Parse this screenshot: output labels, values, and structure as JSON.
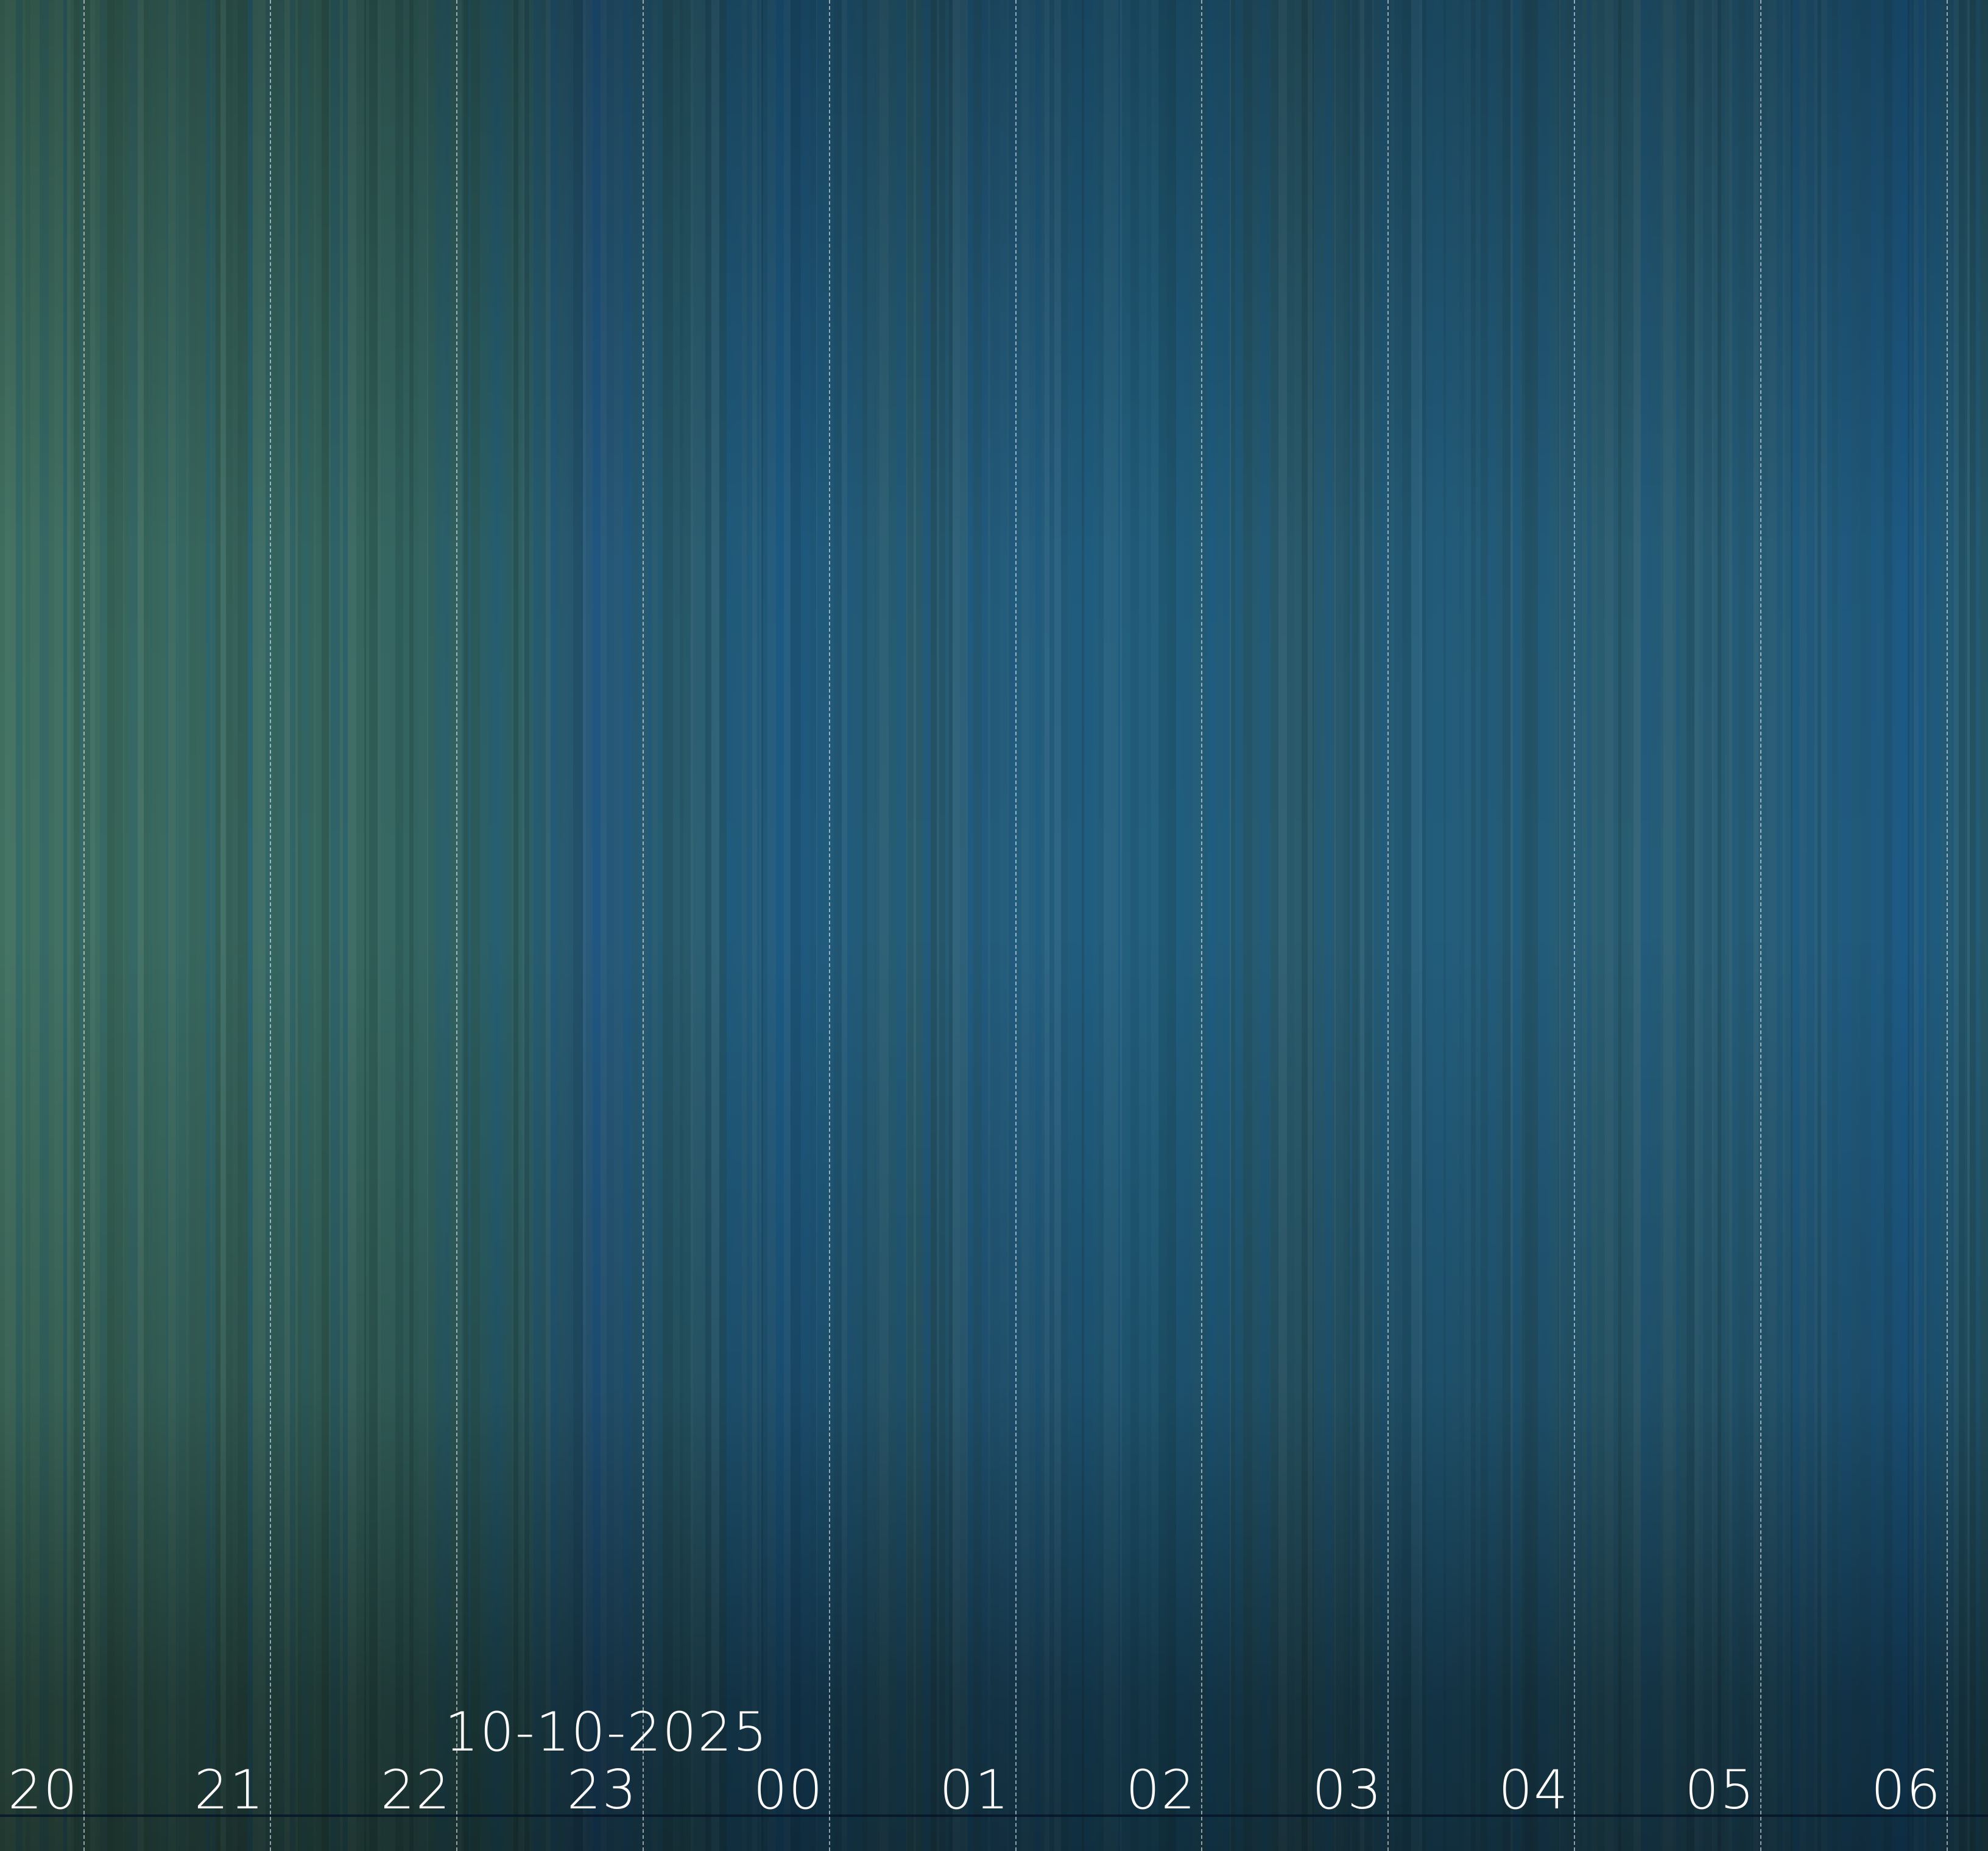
{
  "date_label": "10-10-2025",
  "hour_labels": [
    "20",
    "21",
    "22",
    "23",
    "00",
    "01",
    "02",
    "03",
    "04",
    "05",
    "06"
  ],
  "colors": {
    "sky_green": "#3d6e5e",
    "sky_blue": "#22607e",
    "label": "#ffffff"
  }
}
